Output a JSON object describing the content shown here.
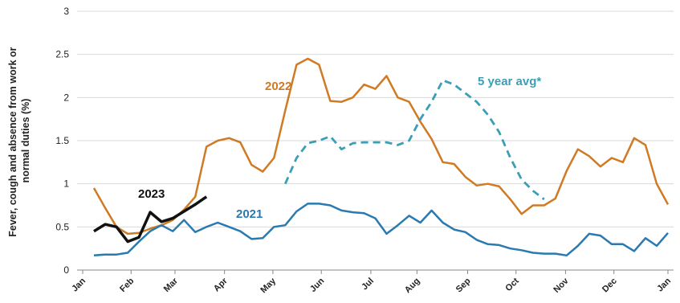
{
  "chart_data": {
    "type": "line",
    "ylabel": [
      "Fever, cough and absence from work or",
      "normal duties (%)"
    ],
    "x": [
      0,
      1,
      2,
      3,
      4,
      5,
      6,
      7,
      8,
      9,
      10,
      11,
      12,
      13,
      14,
      15,
      16,
      17,
      18,
      19,
      20,
      21,
      22,
      23,
      24,
      25,
      26,
      27,
      28,
      29,
      30,
      31,
      32,
      33,
      34,
      35,
      36,
      37,
      38,
      39,
      40,
      41,
      42,
      43,
      44,
      45,
      46,
      47,
      48,
      49,
      50,
      51,
      52
    ],
    "xlim": [
      -0.5,
      52.5
    ],
    "xticks": [
      {
        "value": 0,
        "label": "Jan"
      },
      {
        "value": 4.3,
        "label": "Feb"
      },
      {
        "value": 8.2,
        "label": "Mar"
      },
      {
        "value": 12.6,
        "label": "Apr"
      },
      {
        "value": 16.9,
        "label": "May"
      },
      {
        "value": 21.2,
        "label": "Jun"
      },
      {
        "value": 25.6,
        "label": "Jul"
      },
      {
        "value": 29.7,
        "label": "Aug"
      },
      {
        "value": 34.2,
        "label": "Sep"
      },
      {
        "value": 38.5,
        "label": "Oct"
      },
      {
        "value": 42.9,
        "label": "Nov"
      },
      {
        "value": 47.2,
        "label": "Dec"
      },
      {
        "value": 52,
        "label": "Jan"
      }
    ],
    "ylim": [
      0,
      3
    ],
    "yticks": [
      0,
      0.5,
      1,
      1.5,
      2,
      2.5,
      3
    ],
    "grid": true,
    "series": [
      {
        "name": "2022",
        "color": "#d07a24",
        "dashed": false,
        "values": [
          null,
          0.95,
          0.72,
          0.5,
          0.42,
          0.43,
          0.48,
          0.52,
          0.58,
          0.7,
          0.85,
          1.43,
          1.5,
          1.53,
          1.48,
          1.22,
          1.14,
          1.3,
          1.85,
          2.38,
          2.45,
          2.38,
          1.96,
          1.95,
          2.0,
          2.15,
          2.1,
          2.25,
          2.0,
          1.95,
          1.72,
          1.52,
          1.25,
          1.23,
          1.08,
          0.98,
          1.0,
          0.97,
          0.82,
          0.65,
          0.75,
          0.75,
          0.83,
          1.15,
          1.4,
          1.32,
          1.2,
          1.3,
          1.25,
          1.53,
          1.45,
          1.0,
          0.76
        ]
      },
      {
        "name": "5 year avg*",
        "color": "#3a9fb5",
        "dashed": true,
        "values": [
          null,
          null,
          null,
          null,
          null,
          null,
          null,
          null,
          null,
          null,
          null,
          null,
          null,
          null,
          null,
          null,
          null,
          null,
          1.0,
          1.3,
          1.47,
          1.5,
          1.55,
          1.4,
          1.47,
          1.48,
          1.48,
          1.48,
          1.45,
          1.5,
          1.75,
          1.95,
          2.2,
          2.15,
          2.05,
          1.95,
          1.8,
          1.6,
          1.3,
          1.05,
          0.92,
          0.82,
          null,
          null,
          null,
          null,
          null,
          null,
          null,
          null,
          null,
          null,
          null
        ]
      },
      {
        "name": "2023",
        "color": "#111111",
        "dashed": false,
        "values": [
          null,
          0.45,
          0.53,
          0.5,
          0.33,
          0.38,
          0.67,
          0.56,
          0.6,
          0.68,
          0.76,
          0.85,
          null,
          null,
          null,
          null,
          null,
          null,
          null,
          null,
          null,
          null,
          null,
          null,
          null,
          null,
          null,
          null,
          null,
          null,
          null,
          null,
          null,
          null,
          null,
          null,
          null,
          null,
          null,
          null,
          null,
          null,
          null,
          null,
          null,
          null,
          null,
          null,
          null,
          null,
          null,
          null,
          null
        ]
      },
      {
        "name": "2021",
        "color": "#2a7ab0",
        "dashed": false,
        "values": [
          null,
          0.17,
          0.18,
          0.18,
          0.2,
          0.33,
          0.45,
          0.52,
          0.45,
          0.58,
          0.44,
          0.5,
          0.55,
          0.5,
          0.45,
          0.36,
          0.37,
          0.5,
          0.52,
          0.68,
          0.77,
          0.77,
          0.75,
          0.69,
          0.67,
          0.66,
          0.6,
          0.42,
          0.52,
          0.63,
          0.55,
          0.69,
          0.55,
          0.47,
          0.44,
          0.35,
          0.3,
          0.29,
          0.25,
          0.23,
          0.2,
          0.19,
          0.19,
          0.17,
          0.28,
          0.42,
          0.4,
          0.3,
          0.3,
          0.22,
          0.37,
          0.28,
          0.43
        ]
      }
    ]
  }
}
